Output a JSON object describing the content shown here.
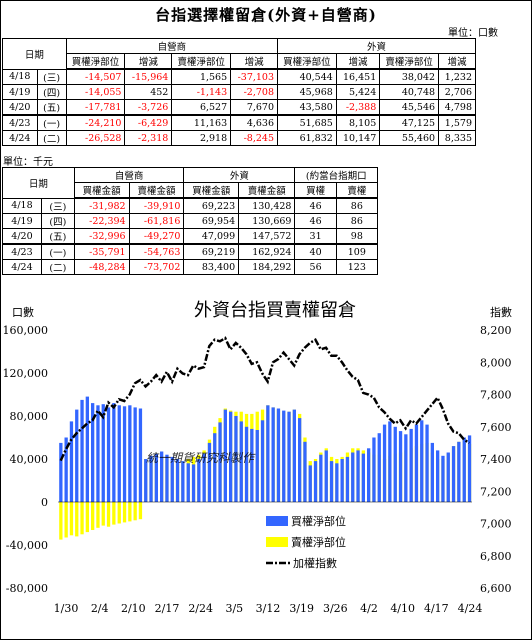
{
  "title": "台指選擇權留倉(外資+自營商)",
  "unit1": "單位：口數",
  "unit2": "單位：千元",
  "table1": {
    "date_header": "日期",
    "group_dealer": "自營商",
    "group_foreign": "外資",
    "col_headers": [
      "買權淨部位",
      "增減",
      "賣權淨部位",
      "增減",
      "買權淨部位",
      "增減",
      "賣權淨部位",
      "增減"
    ],
    "rows": [
      {
        "date": "4/18",
        "day": "(三)",
        "v": [
          "-14,507",
          "-15,964",
          "1,565",
          "-37,103",
          "40,544",
          "16,451",
          "38,042",
          "1,232"
        ]
      },
      {
        "date": "4/19",
        "day": "(四)",
        "v": [
          "-14,055",
          "452",
          "-1,143",
          "-2,708",
          "45,968",
          "5,424",
          "40,748",
          "2,706"
        ]
      },
      {
        "date": "4/20",
        "day": "(五)",
        "v": [
          "-17,781",
          "-3,726",
          "6,527",
          "7,670",
          "43,580",
          "-2,388",
          "45,546",
          "4,798"
        ]
      },
      {
        "date": "4/23",
        "day": "(一)",
        "v": [
          "-24,210",
          "-6,429",
          "11,163",
          "4,636",
          "51,685",
          "8,105",
          "47,125",
          "1,579"
        ]
      },
      {
        "date": "4/24",
        "day": "(二)",
        "v": [
          "-26,528",
          "-2,318",
          "2,918",
          "-8,245",
          "61,832",
          "10,147",
          "55,460",
          "8,335"
        ]
      }
    ]
  },
  "table2": {
    "date_header": "日期",
    "group_dealer": "自營商",
    "group_foreign": "外資",
    "group_contracts": "(約當台指期口",
    "col_headers": [
      "買權金額",
      "賣權金額",
      "買權金額",
      "賣權金額",
      "買權",
      "賣權"
    ],
    "rows": [
      {
        "date": "4/18",
        "day": "(三)",
        "v": [
          "-31,982",
          "-39,910",
          "69,223",
          "130,428",
          "46",
          "86"
        ]
      },
      {
        "date": "4/19",
        "day": "(四)",
        "v": [
          "-22,394",
          "-61,816",
          "69,954",
          "130,669",
          "46",
          "86"
        ]
      },
      {
        "date": "4/20",
        "day": "(五)",
        "v": [
          "-32,996",
          "-49,270",
          "47,099",
          "147,572",
          "31",
          "98"
        ]
      },
      {
        "date": "4/23",
        "day": "(一)",
        "v": [
          "-35,791",
          "-54,763",
          "69,219",
          "162,924",
          "40",
          "109"
        ]
      },
      {
        "date": "4/24",
        "day": "(二)",
        "v": [
          "-48,284",
          "-73,702",
          "83,400",
          "184,292",
          "56",
          "123"
        ]
      }
    ]
  },
  "chart_data": {
    "type": "bar",
    "title": "外資台指買賣權留倉",
    "ylabel": "口數",
    "y2label": "指數",
    "ylim": [
      -80000,
      160000
    ],
    "y2lim": [
      6600,
      8200
    ],
    "yticks": [
      "160,000",
      "120,000",
      "80,000",
      "40,000",
      "0",
      "-40,000",
      "-80,000"
    ],
    "y2ticks": [
      "8,200",
      "8,000",
      "7,800",
      "7,600",
      "7,400",
      "7,200",
      "7,000",
      "6,800",
      "6,600"
    ],
    "xticks": [
      "1/30",
      "2/4",
      "2/10",
      "2/17",
      "2/24",
      "3/5",
      "3/12",
      "3/19",
      "3/26",
      "4/2",
      "4/10",
      "4/17",
      "4/24"
    ],
    "watermark": "統一期貨研究科製作",
    "legend_position": "right-center",
    "series": [
      {
        "name": "買權淨部位",
        "color": "#3366ff",
        "values": [
          55000,
          60000,
          75000,
          86000,
          95000,
          98000,
          92000,
          90000,
          91000,
          88000,
          92000,
          90000,
          89000,
          90000,
          88000,
          87000,
          40000,
          43000,
          45000,
          47000,
          44000,
          42000,
          40000,
          38000,
          36000,
          35000,
          40000,
          45000,
          55000,
          64000,
          74000,
          86000,
          84000,
          80000,
          75000,
          70000,
          68000,
          67000,
          76000,
          90000,
          88000,
          87000,
          85000,
          84000,
          86000,
          78000,
          56000,
          34000,
          38000,
          44000,
          48000,
          38000,
          36000,
          40000,
          42000,
          46000,
          48000,
          45000,
          50000,
          60000,
          64000,
          72000,
          75000,
          70000,
          66000,
          63000,
          68000,
          72000,
          76000,
          72000,
          55000,
          48000,
          43000,
          46000,
          52000,
          56000,
          60000,
          62000
        ]
      },
      {
        "name": "賣權淨部位",
        "color": "#ffff00",
        "values": [
          -35000,
          -33000,
          -31000,
          -32000,
          -30000,
          -28000,
          -26000,
          -24000,
          -22000,
          -23000,
          -21000,
          -20000,
          -19000,
          -18000,
          -17000,
          -16000,
          40000,
          41000,
          42000,
          42000,
          40000,
          38000,
          36000,
          38000,
          40000,
          42000,
          44000,
          48000,
          58000,
          70000,
          78000,
          87000,
          85000,
          84000,
          84000,
          82000,
          82000,
          84000,
          86000,
          90000,
          88000,
          86000,
          84000,
          84000,
          86000,
          82000,
          60000,
          38000,
          40000,
          46000,
          50000,
          42000,
          40000,
          42000,
          46000,
          50000,
          50000,
          48000,
          46000,
          44000,
          44000,
          40000,
          43000,
          45000,
          46000,
          48000,
          50000,
          52000,
          54000,
          55000,
          46000,
          40000,
          40000,
          45000,
          52000,
          56000,
          58000,
          54000
        ]
      },
      {
        "name": "加權指數",
        "color": "#000000",
        "values": [
          7390,
          7460,
          7520,
          7560,
          7590,
          7620,
          7640,
          7700,
          7660,
          7750,
          7720,
          7770,
          7760,
          7800,
          7870,
          7890,
          7850,
          7880,
          7920,
          7880,
          7940,
          7880,
          7960,
          7930,
          7920,
          7980,
          7960,
          7970,
          8100,
          8140,
          8130,
          8150,
          8080,
          8120,
          8090,
          8050,
          7990,
          8000,
          7930,
          7880,
          8000,
          8020,
          8060,
          8020,
          7980,
          8050,
          8090,
          8120,
          8140,
          8080,
          8090,
          8040,
          8040,
          8000,
          7950,
          7910,
          7890,
          7810,
          7800,
          7780,
          7720,
          7690,
          7650,
          7620,
          7640,
          7590,
          7640,
          7620,
          7660,
          7700,
          7740,
          7780,
          7710,
          7620,
          7570,
          7560,
          7520,
          7500
        ]
      }
    ]
  }
}
